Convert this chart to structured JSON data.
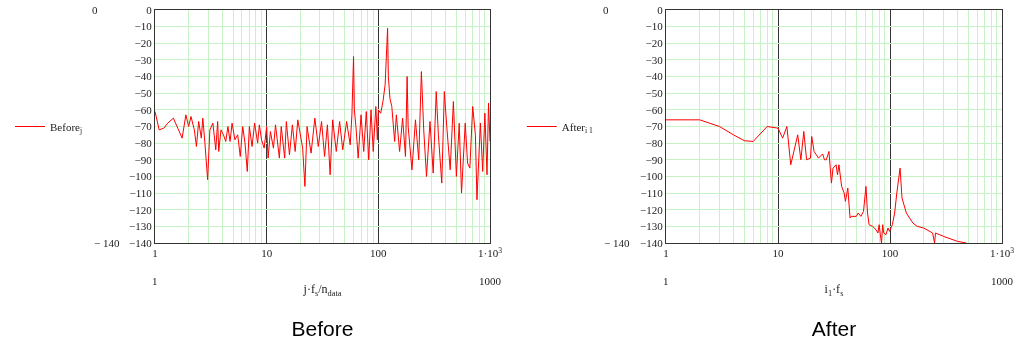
{
  "chart_data": [
    {
      "type": "line",
      "title": "Before",
      "xlabel": "j·f$_{s}$/n$_{data}$",
      "log": "x",
      "grid": true,
      "legend": "left",
      "xlim": [
        1,
        1000
      ],
      "ylim": [
        -140,
        0
      ],
      "xticks": [
        1,
        10,
        100,
        {
          "value": 1000,
          "label": "1·10$^{3}$"
        }
      ],
      "yticks": [
        -140,
        -130,
        -120,
        -110,
        -100,
        -90,
        -80,
        -70,
        -60,
        -50,
        -40,
        -30,
        -20,
        -10,
        0
      ],
      "annotations": [
        "0",
        "− 140",
        "1",
        "1000"
      ],
      "series": [
        {
          "name": "Before$_{j}$",
          "color": "#ff0000",
          "x": [
            1,
            1.09,
            1.2,
            1.3,
            1.46,
            1.6,
            1.75,
            1.89,
            2.0,
            2.1,
            2.25,
            2.35,
            2.46,
            2.6,
            2.68,
            2.8,
            2.96,
            3.1,
            3.3,
            3.5,
            3.64,
            3.72,
            3.9,
            4.1,
            4.3,
            4.5,
            4.7,
            4.9,
            5.2,
            5.5,
            5.8,
            6.1,
            6.4,
            6.7,
            7.0,
            7.4,
            7.8,
            8.3,
            8.6,
            9.0,
            9.5,
            10,
            10.3,
            10.8,
            11.5,
            12,
            13,
            13.5,
            14.5,
            15,
            16,
            17,
            18,
            19,
            21,
            22,
            23,
            25,
            27,
            29,
            31,
            33,
            35,
            37,
            39,
            42,
            45,
            48,
            52,
            56,
            58,
            60,
            61,
            63,
            66,
            70,
            74,
            78,
            82,
            86,
            90,
            95,
            98,
            100,
            105,
            110,
            115,
            121,
            123,
            127,
            132,
            140,
            145,
            155,
            165,
            175,
            181,
            185,
            200,
            215,
            230,
            243,
            255,
            270,
            290,
            310,
            330,
            345,
            370,
            390,
            410,
            440,
            470,
            500,
            530,
            556,
            600,
            630,
            660,
            700,
            740,
            764,
            820,
            860,
            900,
            940,
            970,
            1000
          ],
          "values": [
            -61,
            -72,
            -71,
            -68,
            -65,
            -71,
            -77,
            -63,
            -70,
            -64,
            -72,
            -82,
            -67,
            -77,
            -65,
            -80,
            -102,
            -72,
            -68,
            -84,
            -67,
            -85,
            -72,
            -75,
            -79,
            -70,
            -79,
            -68,
            -78,
            -75,
            -88,
            -70,
            -80,
            -97,
            -70,
            -82,
            -68,
            -80,
            -69,
            -78,
            -83,
            -70,
            -89,
            -73,
            -83,
            -69,
            -89,
            -70,
            -89,
            -67,
            -87,
            -69,
            -85,
            -66,
            -83,
            -106,
            -70,
            -86,
            -65,
            -82,
            -67,
            -88,
            -69,
            -99,
            -66,
            -85,
            -67,
            -84,
            -67,
            -81,
            -63,
            -28,
            -60,
            -70,
            -89,
            -63,
            -85,
            -61,
            -90,
            -60,
            -85,
            -58,
            -78,
            -60,
            -62,
            -55,
            -45,
            -11,
            -40,
            -53,
            -58,
            -79,
            -63,
            -85,
            -65,
            -88,
            -40,
            -70,
            -96,
            -66,
            -90,
            -37,
            -72,
            -100,
            -67,
            -98,
            -49,
            -75,
            -104,
            -49,
            -70,
            -96,
            -55,
            -100,
            -68,
            -110,
            -68,
            -92,
            -95,
            -58,
            -75,
            -114,
            -68,
            -97,
            -62,
            -99,
            -56,
            -79
          ]
        }
      ]
    },
    {
      "type": "line",
      "title": "After",
      "xlabel": "i$_{1}$·f$_{s}$",
      "log": "x",
      "grid": true,
      "legend": "left",
      "xlim": [
        1,
        1000
      ],
      "ylim": [
        -140,
        0
      ],
      "xticks": [
        1,
        10,
        100,
        {
          "value": 1000,
          "label": "1·10$^{3}$"
        }
      ],
      "yticks": [
        -140,
        -130,
        -120,
        -110,
        -100,
        -90,
        -80,
        -70,
        -60,
        -50,
        -40,
        -30,
        -20,
        -10,
        0
      ],
      "annotations": [
        "0",
        "− 140",
        "1",
        "1000"
      ],
      "series": [
        {
          "name": "After$_{i 1}$",
          "color": "#ff0000",
          "x": [
            1,
            2,
            3,
            4,
            5,
            6,
            8,
            10,
            11,
            12,
            13,
            15,
            16,
            17,
            18,
            19.5,
            20,
            21,
            23,
            25,
            26,
            27,
            28.5,
            30,
            31,
            33,
            34,
            35,
            37,
            39,
            40,
            42,
            44,
            45,
            50,
            52,
            55,
            58,
            61,
            63,
            65,
            70,
            75,
            78,
            80,
            82,
            84,
            86,
            88,
            92,
            96,
            99,
            102,
            105,
            110,
            115,
            123,
            128,
            140,
            160,
            175,
            200,
            240,
            250,
            255,
            300,
            400,
            480
          ],
          "values": [
            -66,
            -66,
            -70,
            -75,
            -78.5,
            -79,
            -70,
            -71,
            -77,
            -70,
            -93,
            -75,
            -90,
            -73,
            -90,
            -89,
            -76,
            -85,
            -89,
            -86.5,
            -90,
            -90,
            -85,
            -104,
            -95,
            -93,
            -99,
            -93,
            -106,
            -110,
            -115,
            -107,
            -125,
            -124,
            -124,
            -122,
            -124,
            -121,
            -106,
            -122,
            -129,
            -130,
            -132,
            -134,
            -129,
            -135,
            -140,
            -129,
            -134,
            -135,
            -131,
            -133,
            -131,
            -129,
            -122,
            -110,
            -95,
            -113,
            -122,
            -128,
            -130,
            -131,
            -134,
            -140,
            -134,
            -136,
            -139,
            -140
          ]
        }
      ]
    }
  ]
}
